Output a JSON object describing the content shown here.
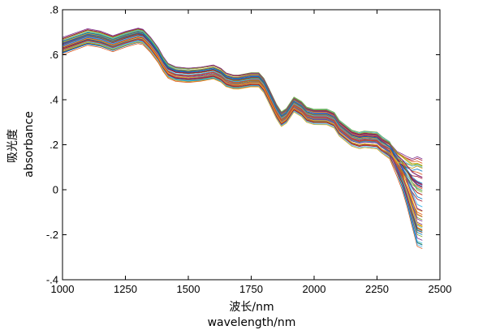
{
  "chart_data": {
    "type": "line",
    "title": "",
    "xlabel_line1": "波长/nm",
    "xlabel_line2": "wavelength/nm",
    "ylabel_line1": "吸光度",
    "ylabel_line2": "absorbance",
    "xlim": [
      1000,
      2500
    ],
    "ylim": [
      -0.4,
      0.8
    ],
    "xticks": [
      1000,
      1250,
      1500,
      1750,
      2000,
      2250,
      2500
    ],
    "yticks": [
      -0.4,
      -0.2,
      0,
      0.2,
      0.4,
      0.6,
      0.8
    ],
    "grid": false,
    "legend": "none",
    "series_count": 60,
    "series_colors": [
      "#0072bd",
      "#d95319",
      "#edb120",
      "#7e2f8e",
      "#77ac30",
      "#4dbeee",
      "#a2142f"
    ],
    "x": [
      1000,
      1050,
      1100,
      1150,
      1200,
      1250,
      1300,
      1320,
      1350,
      1380,
      1400,
      1420,
      1450,
      1500,
      1550,
      1600,
      1630,
      1650,
      1680,
      1700,
      1750,
      1780,
      1800,
      1820,
      1850,
      1870,
      1890,
      1920,
      1950,
      1970,
      2000,
      2050,
      2080,
      2100,
      2150,
      2180,
      2200,
      2250,
      2270,
      2300,
      2330,
      2350,
      2370,
      2390,
      2410,
      2430
    ],
    "mean_values": [
      0.64,
      0.66,
      0.68,
      0.67,
      0.65,
      0.67,
      0.685,
      0.68,
      0.645,
      0.6,
      0.56,
      0.53,
      0.515,
      0.51,
      0.515,
      0.525,
      0.51,
      0.49,
      0.48,
      0.48,
      0.49,
      0.49,
      0.465,
      0.42,
      0.35,
      0.315,
      0.33,
      0.38,
      0.36,
      0.335,
      0.325,
      0.325,
      0.31,
      0.275,
      0.23,
      0.22,
      0.225,
      0.22,
      0.2,
      0.18,
      0.12,
      0.085,
      0.04,
      -0.01,
      -0.05,
      -0.06
    ]
  }
}
